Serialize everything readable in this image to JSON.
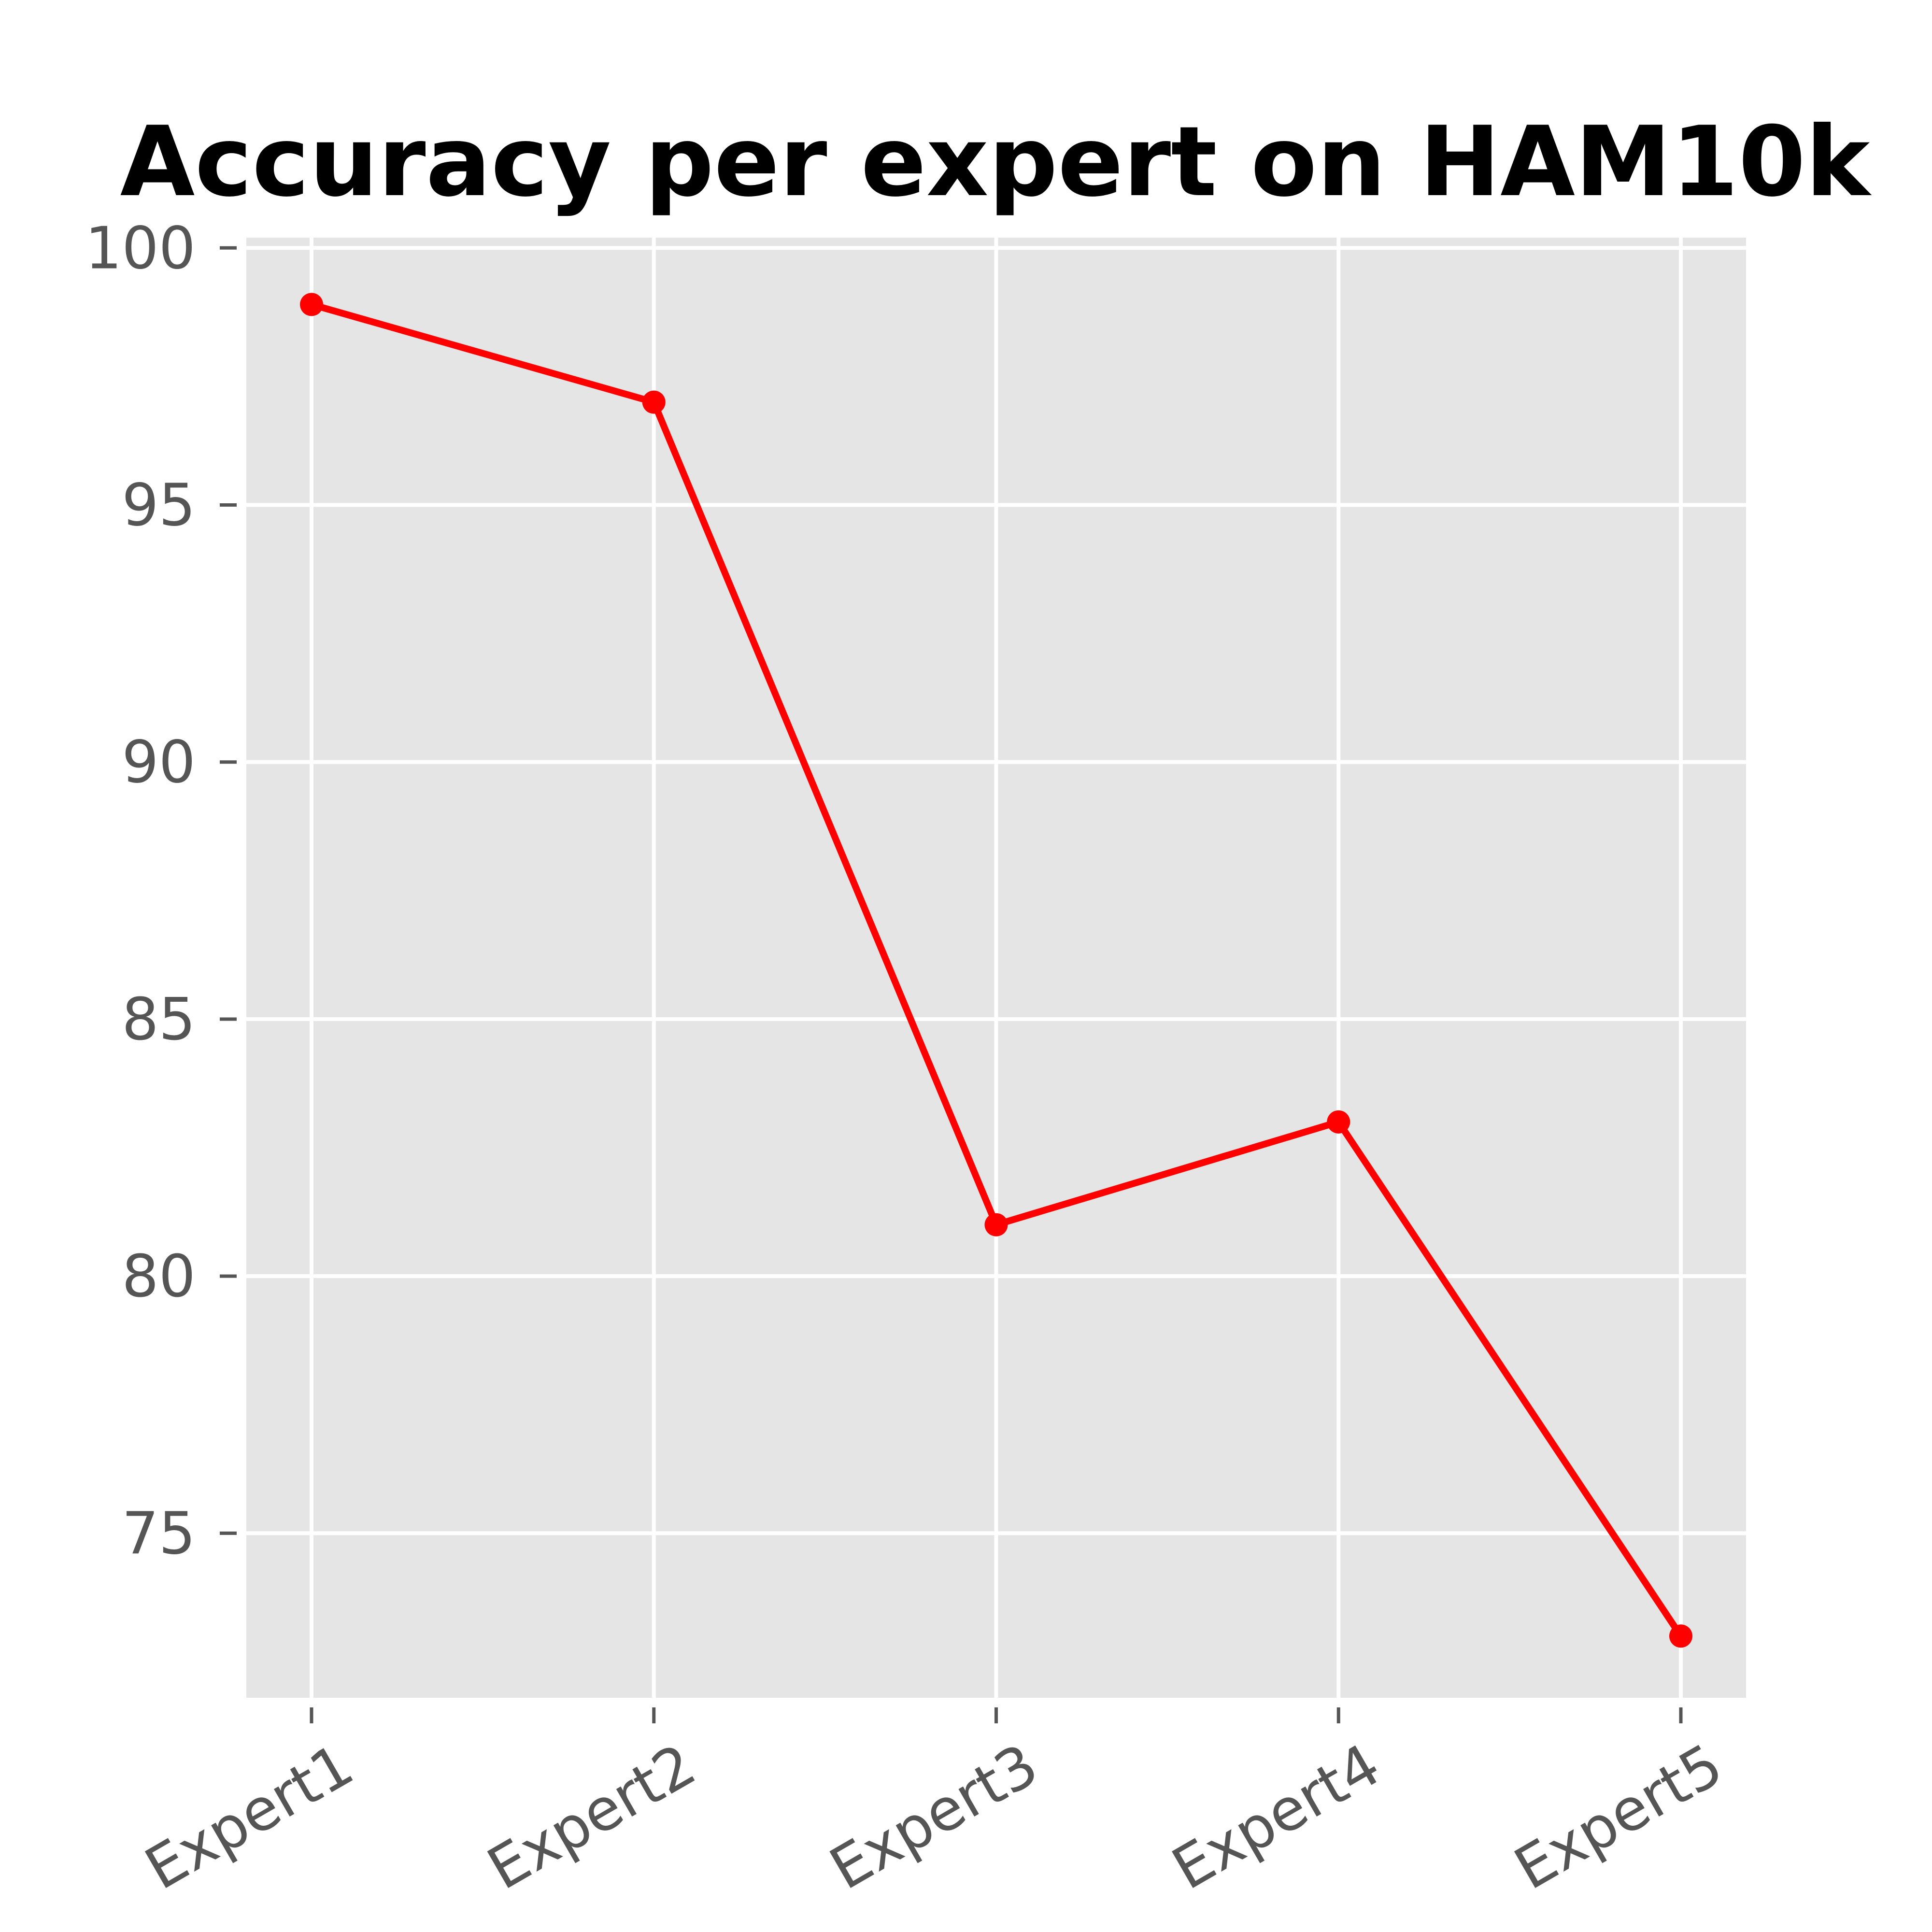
{
  "chart_data": {
    "type": "line",
    "title": "Accuracy per expert on HAM10k",
    "xlabel": "",
    "ylabel": "",
    "categories": [
      "Expert1",
      "Expert2",
      "Expert3",
      "Expert4",
      "Expert5"
    ],
    "series": [
      {
        "values": [
          98.9,
          97.0,
          81.0,
          83.0,
          73.0
        ],
        "color": "#ff0000",
        "marker": "circle"
      }
    ],
    "ylim": [
      71.8,
      100.2
    ],
    "yticks": [
      75,
      80,
      85,
      90,
      95,
      100
    ],
    "ytick_labels": [
      "75",
      "80",
      "85",
      "90",
      "95",
      "100"
    ],
    "xtick_rotation": 30,
    "grid": true,
    "legend": "none",
    "colors": {
      "plot_background": "#e5e5e5",
      "grid": "#ffffff",
      "tick_label": "#555555",
      "tick_mark": "#555555",
      "title": "#000000"
    }
  }
}
